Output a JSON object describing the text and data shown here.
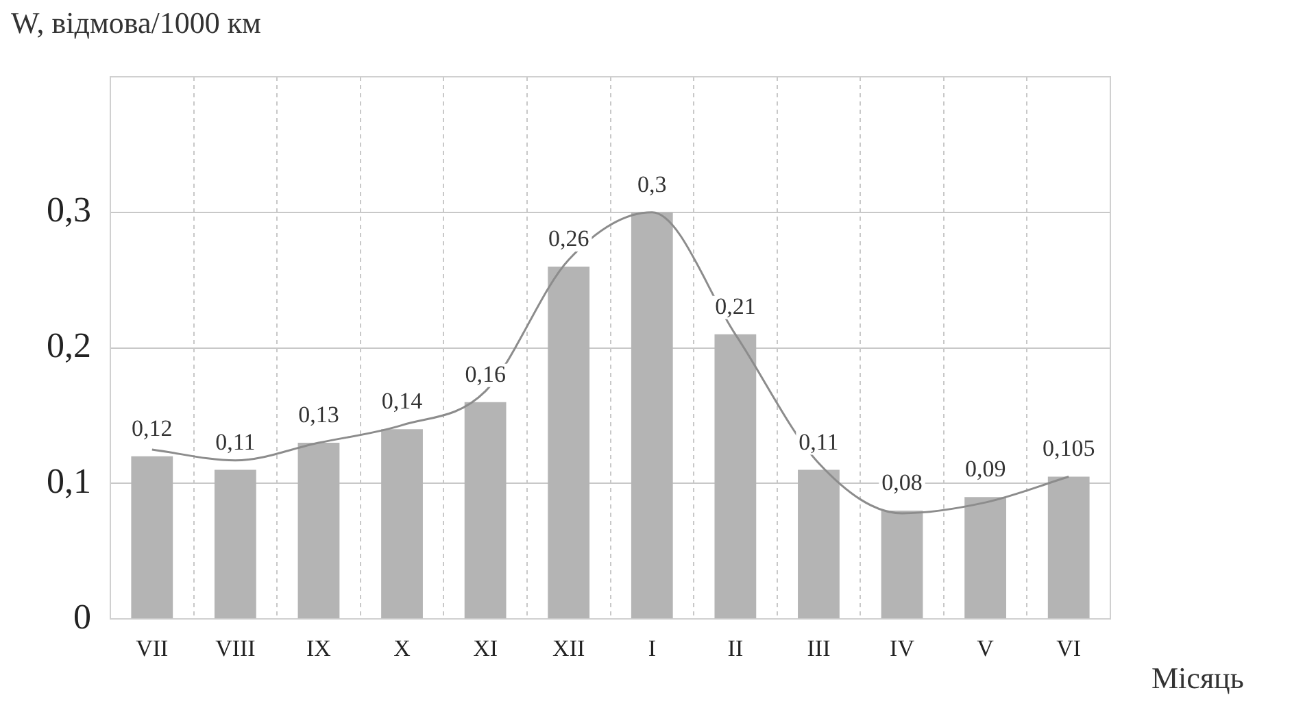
{
  "chart_data": {
    "type": "bar",
    "ylabel": "W, відмова/1000 км",
    "xlabel": "Місяць",
    "categories": [
      "VII",
      "VIII",
      "IX",
      "X",
      "XI",
      "XII",
      "I",
      "II",
      "III",
      "IV",
      "V",
      "VI"
    ],
    "series": [
      {
        "color": "#b4b4b4",
        "values": [
          0.12,
          0.11,
          0.13,
          0.14,
          0.16,
          0.26,
          0.3,
          0.21,
          0.11,
          0.08,
          0.09,
          0.105
        ],
        "value_labels": [
          "0,12",
          "0,11",
          "0,13",
          "0,14",
          "0,16",
          "0,26",
          "0,3",
          "0,21",
          "0,11",
          "0,08",
          "0,09",
          "0,105"
        ]
      },
      {
        "type": "line",
        "color": "#8c8c8c",
        "values": [
          0.125,
          0.117,
          0.13,
          0.143,
          0.168,
          0.265,
          0.3,
          0.21,
          0.115,
          0.078,
          0.086,
          0.105
        ]
      }
    ],
    "ylim": [
      0,
      0.4
    ],
    "yticks": [
      {
        "value": 0,
        "label": "0"
      },
      {
        "value": 0.1,
        "label": "0,1"
      },
      {
        "value": 0.2,
        "label": "0,2"
      },
      {
        "value": 0.3,
        "label": "0,3"
      }
    ],
    "grid": true,
    "legend": false,
    "marker": "none"
  }
}
